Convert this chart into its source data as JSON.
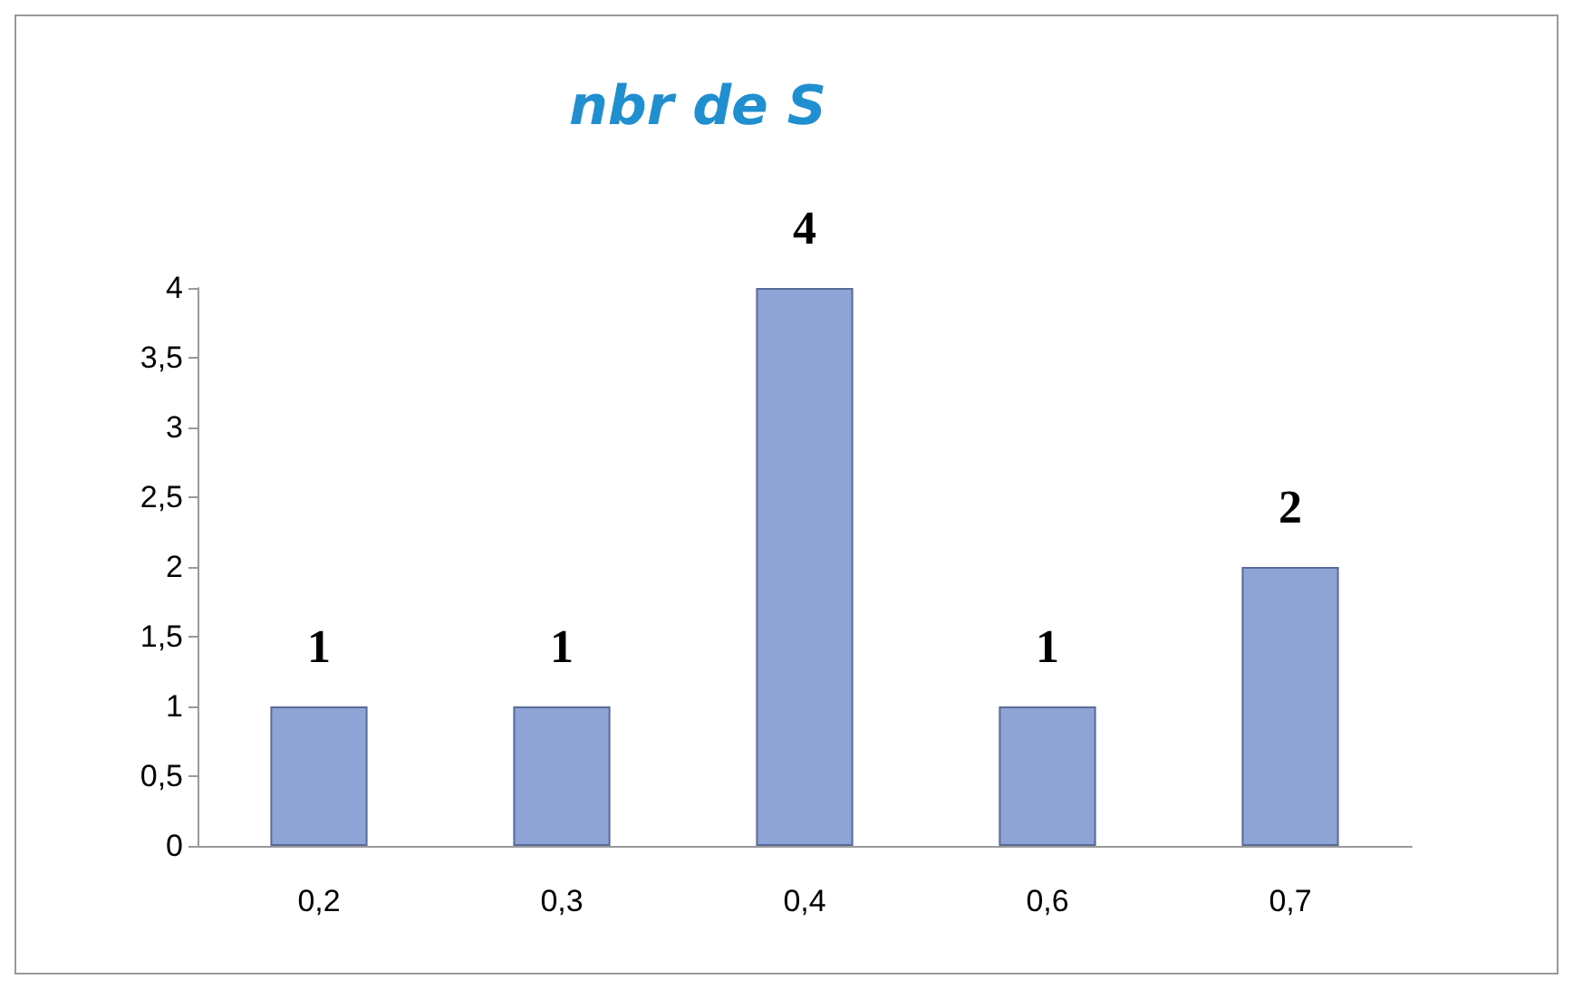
{
  "chart_data": {
    "type": "bar",
    "title": "nbr de S",
    "categories": [
      "0,2",
      "0,3",
      "0,4",
      "0,6",
      "0,7"
    ],
    "values": [
      1,
      1,
      4,
      1,
      2
    ],
    "color": "#8fa4d6",
    "ylim": [
      0,
      4
    ],
    "yticks": [
      0,
      {
        "value": 0.5,
        "label": "0,5"
      },
      1,
      {
        "value": 1.5,
        "label": "1,5"
      },
      2,
      {
        "value": 2.5,
        "label": "2,5"
      },
      3,
      {
        "value": 3.5,
        "label": "3,5"
      },
      4
    ],
    "data_labels": true,
    "grid": false
  }
}
